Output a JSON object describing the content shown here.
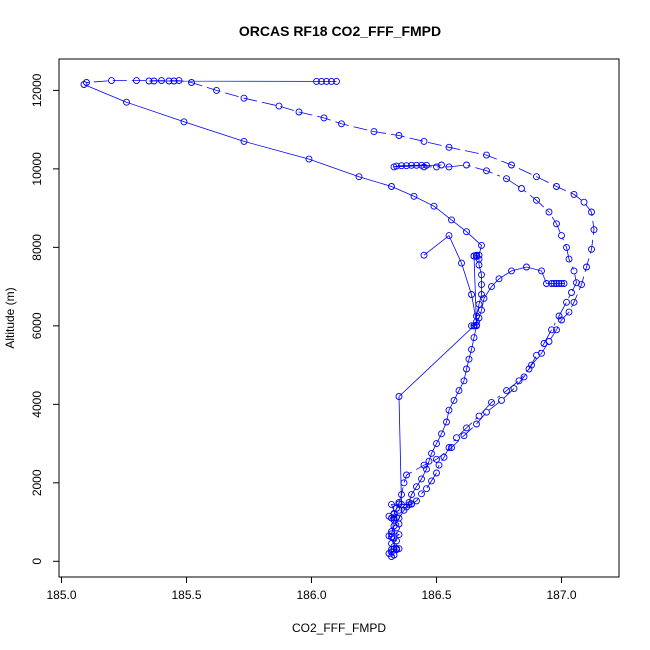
{
  "chart_data": {
    "type": "scatter",
    "title": "ORCAS RF18 CO2_FFF_FMPD",
    "xlabel": "CO2_FFF_FMPD",
    "ylabel": "Altitude (m)",
    "xlim": [
      184.99,
      187.23
    ],
    "ylim": [
      -400,
      12800
    ],
    "xticks": [
      185.0,
      185.5,
      186.0,
      186.5,
      187.0
    ],
    "xtick_labels": [
      "185.0",
      "185.5",
      "186.0",
      "186.5",
      "187.0"
    ],
    "yticks": [
      0,
      2000,
      4000,
      6000,
      8000,
      10000,
      12000
    ],
    "ytick_labels": [
      "0",
      "2000",
      "4000",
      "6000",
      "8000",
      "10000",
      "12000"
    ],
    "grid": false,
    "legend": "none",
    "color": "#0000ff",
    "series": [
      {
        "points": [
          [
            186.32,
            120
          ],
          [
            186.33,
            160
          ],
          [
            186.31,
            200
          ],
          [
            186.32,
            240
          ],
          [
            186.34,
            300
          ],
          [
            186.35,
            320
          ],
          [
            186.33,
            380
          ],
          [
            186.32,
            450
          ],
          [
            186.34,
            520
          ],
          [
            186.33,
            600
          ],
          [
            186.35,
            680
          ],
          [
            186.32,
            760
          ],
          [
            186.34,
            850
          ],
          [
            186.35,
            950
          ],
          [
            186.33,
            1050
          ],
          [
            186.31,
            1150
          ],
          [
            186.33,
            1220
          ],
          [
            186.35,
            1300
          ],
          [
            186.38,
            1380
          ],
          [
            186.4,
            1460
          ],
          [
            186.42,
            1540
          ],
          [
            186.44,
            1720
          ],
          [
            186.46,
            1850
          ],
          [
            186.48,
            2050
          ],
          [
            186.5,
            2250
          ],
          [
            186.51,
            2450
          ],
          [
            186.53,
            2650
          ],
          [
            186.55,
            2900
          ],
          [
            186.58,
            3150
          ],
          [
            186.62,
            3400
          ],
          [
            186.67,
            3700
          ],
          [
            186.72,
            4050
          ],
          [
            186.78,
            4350
          ],
          [
            186.83,
            4600
          ],
          [
            186.87,
            4900
          ],
          [
            186.9,
            5250
          ],
          [
            186.93,
            5550
          ],
          [
            186.96,
            5900
          ],
          [
            186.99,
            6250
          ],
          [
            187.02,
            6600
          ],
          [
            187.04,
            6850
          ],
          [
            187.06,
            7100
          ],
          [
            187.05,
            7400
          ],
          [
            187.03,
            7700
          ],
          [
            187.02,
            8000
          ],
          [
            187.0,
            8300
          ],
          [
            186.98,
            8600
          ],
          [
            186.95,
            8900
          ],
          [
            186.9,
            9200
          ],
          [
            186.84,
            9500
          ],
          [
            186.78,
            9750
          ],
          [
            186.7,
            9950
          ],
          [
            186.62,
            10100
          ],
          [
            186.55,
            10050
          ],
          [
            186.5,
            10050
          ],
          [
            186.45,
            10050
          ]
        ]
      },
      {
        "points": [
          [
            186.32,
            1100
          ],
          [
            186.33,
            1200
          ],
          [
            186.34,
            1350
          ],
          [
            186.35,
            1500
          ],
          [
            186.36,
            1700
          ],
          [
            186.37,
            2000
          ],
          [
            186.38,
            2200
          ],
          [
            186.45,
            2450
          ],
          [
            186.5,
            2600
          ],
          [
            186.56,
            2900
          ],
          [
            186.61,
            3200
          ],
          [
            186.66,
            3500
          ],
          [
            186.7,
            3800
          ],
          [
            186.76,
            4100
          ],
          [
            186.81,
            4400
          ],
          [
            186.85,
            4700
          ],
          [
            186.88,
            5000
          ],
          [
            186.92,
            5300
          ],
          [
            186.95,
            5600
          ],
          [
            186.98,
            5900
          ],
          [
            187.0,
            6150
          ],
          [
            187.03,
            6350
          ],
          [
            187.05,
            6600
          ],
          [
            187.08,
            7050
          ],
          [
            187.1,
            7500
          ],
          [
            187.12,
            7950
          ],
          [
            187.13,
            8450
          ],
          [
            187.12,
            8900
          ],
          [
            187.09,
            9150
          ],
          [
            187.05,
            9350
          ],
          [
            186.98,
            9550
          ],
          [
            186.9,
            9800
          ],
          [
            186.8,
            10100
          ],
          [
            186.7,
            10350
          ],
          [
            186.55,
            10550
          ],
          [
            186.45,
            10700
          ],
          [
            186.35,
            10850
          ],
          [
            186.25,
            10950
          ],
          [
            186.12,
            11150
          ],
          [
            186.05,
            11300
          ],
          [
            185.95,
            11450
          ],
          [
            185.87,
            11600
          ],
          [
            185.73,
            11800
          ],
          [
            185.62,
            12000
          ],
          [
            185.52,
            12200
          ],
          [
            185.47,
            12250
          ],
          [
            185.4,
            12250
          ],
          [
            185.3,
            12250
          ],
          [
            185.2,
            12250
          ],
          [
            185.1,
            12200
          ]
        ]
      },
      {
        "points": [
          [
            186.32,
            700
          ],
          [
            186.33,
            900
          ],
          [
            186.35,
            1100
          ],
          [
            186.37,
            1300
          ],
          [
            186.39,
            1500
          ],
          [
            186.4,
            1700
          ],
          [
            186.42,
            1900
          ],
          [
            186.44,
            2100
          ],
          [
            186.46,
            2350
          ],
          [
            186.47,
            2550
          ],
          [
            186.48,
            2750
          ],
          [
            186.5,
            3000
          ],
          [
            186.52,
            3250
          ],
          [
            186.54,
            3550
          ],
          [
            186.55,
            3850
          ],
          [
            186.57,
            4100
          ],
          [
            186.59,
            4350
          ],
          [
            186.61,
            4600
          ],
          [
            186.62,
            4900
          ],
          [
            186.63,
            5150
          ],
          [
            186.64,
            5400
          ],
          [
            186.65,
            5700
          ],
          [
            186.66,
            6000
          ],
          [
            186.66,
            6250
          ],
          [
            186.67,
            6550
          ],
          [
            186.68,
            6800
          ],
          [
            186.68,
            7050
          ],
          [
            186.68,
            7300
          ],
          [
            186.67,
            7550
          ],
          [
            186.67,
            7700
          ],
          [
            186.66,
            7780
          ],
          [
            186.65,
            7780
          ],
          [
            186.66,
            7800
          ],
          [
            186.67,
            7800
          ],
          [
            186.68,
            8050
          ],
          [
            186.62,
            8400
          ],
          [
            186.56,
            8700
          ],
          [
            186.49,
            9050
          ],
          [
            186.41,
            9300
          ],
          [
            186.32,
            9550
          ],
          [
            186.19,
            9800
          ],
          [
            185.99,
            10250
          ],
          [
            185.73,
            10700
          ],
          [
            185.49,
            11200
          ],
          [
            185.26,
            11700
          ],
          [
            185.09,
            12150
          ]
        ]
      },
      {
        "points": [
          [
            186.45,
            7800
          ],
          [
            186.55,
            8300
          ],
          [
            186.6,
            7600
          ],
          [
            186.64,
            6800
          ],
          [
            186.66,
            6100
          ],
          [
            186.64,
            6000
          ],
          [
            186.65,
            6000
          ],
          [
            186.67,
            6200
          ],
          [
            186.68,
            6400
          ],
          [
            186.69,
            6700
          ],
          [
            186.72,
            7000
          ],
          [
            186.75,
            7200
          ],
          [
            186.8,
            7400
          ],
          [
            186.86,
            7500
          ],
          [
            186.92,
            7400
          ],
          [
            186.94,
            7080
          ],
          [
            186.96,
            7080
          ],
          [
            186.98,
            7080
          ],
          [
            187.0,
            7080
          ],
          [
            187.01,
            7080
          ],
          [
            186.99,
            7080
          ],
          [
            186.97,
            7080
          ]
        ]
      },
      {
        "points": [
          [
            186.1,
            12230
          ],
          [
            186.08,
            12230
          ],
          [
            186.06,
            12230
          ],
          [
            186.04,
            12230
          ],
          [
            186.02,
            12230
          ],
          [
            185.35,
            12240
          ],
          [
            185.37,
            12240
          ],
          [
            185.43,
            12240
          ],
          [
            185.45,
            12240
          ]
        ]
      },
      {
        "points": [
          [
            186.32,
            300
          ],
          [
            186.33,
            310
          ],
          [
            186.34,
            300
          ],
          [
            186.34,
            330
          ],
          [
            186.31,
            650
          ],
          [
            186.32,
            620
          ],
          [
            186.33,
            1100
          ],
          [
            186.34,
            1120
          ],
          [
            186.32,
            1450
          ],
          [
            186.35,
            1460
          ],
          [
            186.39,
            1440
          ],
          [
            186.4,
            1460
          ],
          [
            186.36,
            1450
          ],
          [
            186.35,
            4200
          ],
          [
            186.65,
            6000
          ],
          [
            186.66,
            6020
          ],
          [
            186.65,
            7780
          ],
          [
            186.66,
            7770
          ]
        ]
      },
      {
        "points": [
          [
            186.52,
            10100
          ],
          [
            186.33,
            10050
          ],
          [
            186.34,
            10070
          ],
          [
            186.36,
            10080
          ],
          [
            186.38,
            10080
          ],
          [
            186.4,
            10090
          ],
          [
            186.42,
            10090
          ],
          [
            186.44,
            10090
          ],
          [
            186.46,
            10090
          ]
        ]
      }
    ]
  }
}
